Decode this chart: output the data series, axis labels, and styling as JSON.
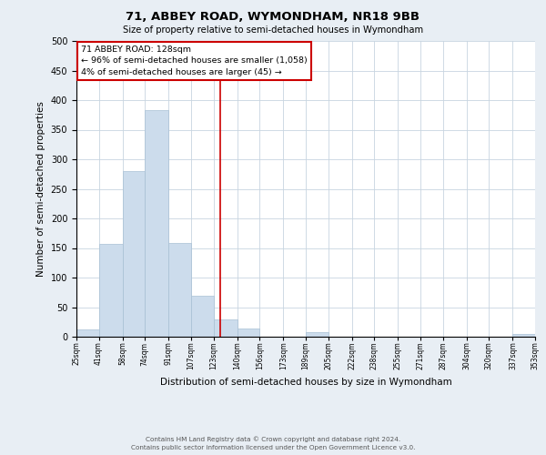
{
  "title": "71, ABBEY ROAD, WYMONDHAM, NR18 9BB",
  "subtitle": "Size of property relative to semi-detached houses in Wymondham",
  "xlabel": "Distribution of semi-detached houses by size in Wymondham",
  "ylabel": "Number of semi-detached properties",
  "bin_edges": [
    25,
    41,
    58,
    74,
    91,
    107,
    123,
    140,
    156,
    173,
    189,
    205,
    222,
    238,
    255,
    271,
    287,
    304,
    320,
    337,
    353
  ],
  "bin_heights": [
    12,
    157,
    280,
    383,
    158,
    70,
    30,
    14,
    0,
    0,
    7,
    0,
    0,
    0,
    0,
    0,
    0,
    0,
    0,
    5
  ],
  "bar_color": "#ccdcec",
  "bar_edgecolor": "#a8c0d4",
  "reference_line_x": 128,
  "reference_line_color": "#cc0000",
  "annotation_line1": "71 ABBEY ROAD: 128sqm",
  "annotation_line2": "← 96% of semi-detached houses are smaller (1,058)",
  "annotation_line3": "4% of semi-detached houses are larger (45) →",
  "annotation_box_color": "#cc0000",
  "ylim": [
    0,
    500
  ],
  "tick_labels": [
    "25sqm",
    "41sqm",
    "58sqm",
    "74sqm",
    "91sqm",
    "107sqm",
    "123sqm",
    "140sqm",
    "156sqm",
    "173sqm",
    "189sqm",
    "205sqm",
    "222sqm",
    "238sqm",
    "255sqm",
    "271sqm",
    "287sqm",
    "304sqm",
    "320sqm",
    "337sqm",
    "353sqm"
  ],
  "footer_line1": "Contains HM Land Registry data © Crown copyright and database right 2024.",
  "footer_line2": "Contains public sector information licensed under the Open Government Licence v3.0.",
  "background_color": "#e8eef4",
  "plot_background_color": "#ffffff",
  "grid_color": "#c8d4e0"
}
